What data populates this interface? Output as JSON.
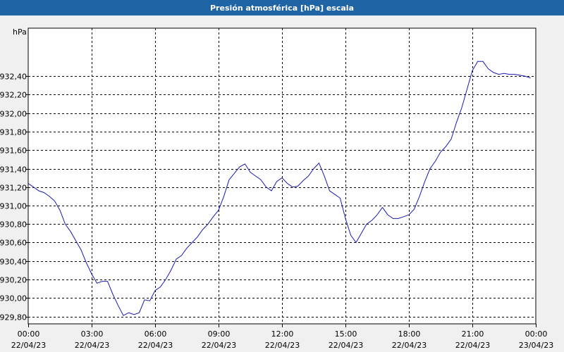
{
  "window": {
    "title": "Presión atmosférica [hPa] escala"
  },
  "chart_data": {
    "type": "line",
    "title": "Presión atmosférica [hPa] escala",
    "ylabel": "hPa",
    "xlabel": "",
    "ylim": [
      929.72,
      932.92
    ],
    "xlim": [
      "22/04/23 00:00",
      "23/04/23 00:00"
    ],
    "y_ticks": [
      "929,80",
      "930,00",
      "930,20",
      "930,40",
      "930,60",
      "930,80",
      "931,00",
      "931,20",
      "931,40",
      "931,60",
      "931,80",
      "932,00",
      "932,20",
      "932,40"
    ],
    "y_tick_values": [
      929.8,
      930.0,
      930.2,
      930.4,
      930.6,
      930.8,
      931.0,
      931.2,
      931.4,
      931.6,
      931.8,
      932.0,
      932.2,
      932.4
    ],
    "x_ticks": [
      {
        "time": "00:00",
        "date": "22/04/23"
      },
      {
        "time": "03:00",
        "date": "22/04/23"
      },
      {
        "time": "06:00",
        "date": "22/04/23"
      },
      {
        "time": "09:00",
        "date": "22/04/23"
      },
      {
        "time": "12:00",
        "date": "22/04/23"
      },
      {
        "time": "15:00",
        "date": "22/04/23"
      },
      {
        "time": "18:00",
        "date": "22/04/23"
      },
      {
        "time": "21:00",
        "date": "22/04/23"
      },
      {
        "time": "00:00",
        "date": "23/04/23"
      }
    ],
    "grid": true,
    "line_color": "#1a1ab4",
    "series": [
      {
        "x": [
          "22/04/23 00:00",
          "22/04/23 00:15",
          "22/04/23 00:30",
          "22/04/23 00:45",
          "22/04/23 01:00",
          "22/04/23 01:15",
          "22/04/23 01:30",
          "22/04/23 01:45",
          "22/04/23 02:00",
          "22/04/23 02:15",
          "22/04/23 02:30",
          "22/04/23 02:45",
          "22/04/23 03:00",
          "22/04/23 03:15",
          "22/04/23 03:30",
          "22/04/23 03:45",
          "22/04/23 04:00",
          "22/04/23 04:15",
          "22/04/23 04:30",
          "22/04/23 04:45",
          "22/04/23 05:00",
          "22/04/23 05:15",
          "22/04/23 05:30",
          "22/04/23 05:45",
          "22/04/23 06:00",
          "22/04/23 06:15",
          "22/04/23 06:30",
          "22/04/23 06:45",
          "22/04/23 07:00",
          "22/04/23 07:15",
          "22/04/23 07:30",
          "22/04/23 07:45",
          "22/04/23 08:00",
          "22/04/23 08:15",
          "22/04/23 08:30",
          "22/04/23 08:45",
          "22/04/23 09:00",
          "22/04/23 09:15",
          "22/04/23 09:30",
          "22/04/23 09:45",
          "22/04/23 10:00",
          "22/04/23 10:15",
          "22/04/23 10:30",
          "22/04/23 10:45",
          "22/04/23 11:00",
          "22/04/23 11:15",
          "22/04/23 11:30",
          "22/04/23 11:45",
          "22/04/23 12:00",
          "22/04/23 12:15",
          "22/04/23 12:30",
          "22/04/23 12:45",
          "22/04/23 13:00",
          "22/04/23 13:15",
          "22/04/23 13:30",
          "22/04/23 13:45",
          "22/04/23 14:00",
          "22/04/23 14:15",
          "22/04/23 14:30",
          "22/04/23 14:45",
          "22/04/23 15:00",
          "22/04/23 15:15",
          "22/04/23 15:30",
          "22/04/23 15:45",
          "22/04/23 16:00",
          "22/04/23 16:15",
          "22/04/23 16:30",
          "22/04/23 16:45",
          "22/04/23 17:00",
          "22/04/23 17:15",
          "22/04/23 17:30",
          "22/04/23 17:45",
          "22/04/23 18:00",
          "22/04/23 18:15",
          "22/04/23 18:30",
          "22/04/23 18:45",
          "22/04/23 19:00",
          "22/04/23 19:15",
          "22/04/23 19:30",
          "22/04/23 19:45",
          "22/04/23 20:00",
          "22/04/23 20:15",
          "22/04/23 20:30",
          "22/04/23 20:45",
          "22/04/23 21:00",
          "22/04/23 21:15",
          "22/04/23 21:30",
          "22/04/23 21:45",
          "22/04/23 22:00",
          "22/04/23 22:15",
          "22/04/23 22:30",
          "22/04/23 22:45",
          "22/04/23 23:00",
          "22/04/23 23:15",
          "22/04/23 23:30",
          "22/04/23 23:45"
        ],
        "y": [
          931.24,
          931.2,
          931.16,
          931.14,
          931.1,
          931.05,
          930.95,
          930.8,
          930.72,
          930.62,
          930.52,
          930.38,
          930.26,
          930.16,
          930.18,
          930.18,
          930.04,
          929.92,
          929.81,
          929.84,
          929.82,
          929.84,
          929.98,
          929.97,
          930.08,
          930.12,
          930.2,
          930.3,
          930.42,
          930.46,
          930.54,
          930.6,
          930.66,
          930.74,
          930.8,
          930.88,
          930.95,
          931.1,
          931.28,
          931.35,
          931.42,
          931.45,
          931.36,
          931.32,
          931.28,
          931.2,
          931.16,
          931.26,
          931.3,
          931.24,
          931.2,
          931.21,
          931.27,
          931.32,
          931.4,
          931.46,
          931.32,
          931.16,
          931.12,
          931.08,
          930.86,
          930.68,
          930.6,
          930.7,
          930.8,
          930.84,
          930.9,
          930.98,
          930.9,
          930.86,
          930.86,
          930.88,
          930.9,
          930.96,
          931.1,
          931.26,
          931.4,
          931.48,
          931.58,
          931.64,
          931.72,
          931.9,
          932.06,
          932.26,
          932.46,
          932.56,
          932.56,
          932.48,
          932.44,
          932.42,
          932.43,
          932.42,
          932.42,
          932.41,
          932.4,
          932.38
        ]
      }
    ]
  }
}
